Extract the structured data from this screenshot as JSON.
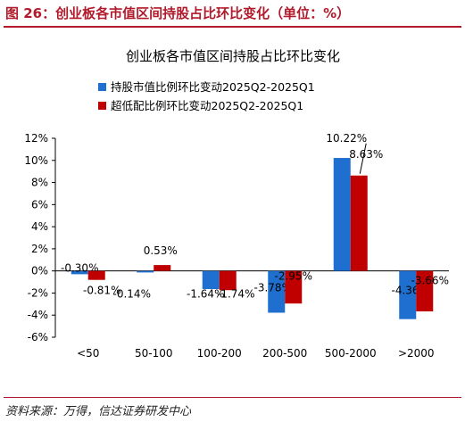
{
  "header": {
    "figure_title": "图 26：创业板各市值区间持股占比环比变化（单位：%）"
  },
  "footer": {
    "source": "资料来源：万得，信达证券研发中心"
  },
  "colors": {
    "series_1": "#1f6fd0",
    "series_2": "#c00000",
    "header_accent": "#b01a2a"
  },
  "chart_data": {
    "type": "bar",
    "title": "创业板各市值区间持股占比环比变化",
    "categories": [
      "<50",
      "50-100",
      "100-200",
      "200-500",
      "500-2000",
      ">2000"
    ],
    "series": [
      {
        "name": "持股市值比例环比变动2025Q2-2025Q1",
        "values": [
          -0.3,
          -0.14,
          -1.64,
          -3.78,
          10.22,
          -4.36
        ],
        "labels": [
          "-0.30%",
          "-0.14%",
          "-1.64%",
          "-3.78%",
          "10.22%",
          "-4.36%"
        ]
      },
      {
        "name": "超低配比例环比变动2025Q2-2025Q1",
        "values": [
          -0.81,
          0.53,
          -1.74,
          -2.95,
          8.63,
          -3.66
        ],
        "labels": [
          "-0.81%",
          "0.53%",
          "-1.74%",
          "-2.95%",
          "8.63%",
          "-3.66%"
        ]
      }
    ],
    "yticks": [
      "12%",
      "10%",
      "8%",
      "6%",
      "4%",
      "2%",
      "0%",
      "-2%",
      "-4%",
      "-6%"
    ],
    "ylim": [
      -6,
      12
    ],
    "ytick_step": 2,
    "xlabel": "",
    "ylabel": "",
    "grid": false,
    "legend_position": "top-left"
  }
}
